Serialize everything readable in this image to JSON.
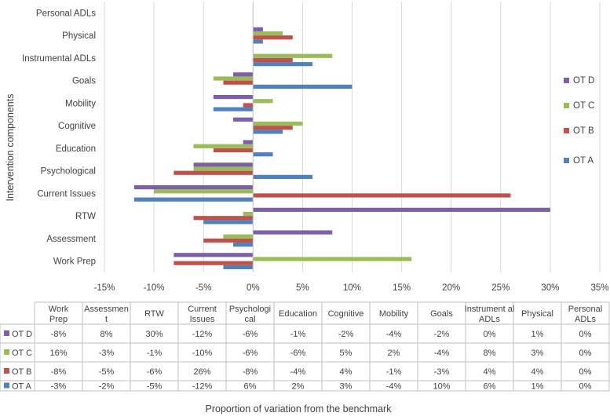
{
  "chart_data": {
    "type": "bar",
    "orientation": "horizontal",
    "ylabel": "Intervention components",
    "xlabel": "Proportion of variation from the benchmark",
    "categories": [
      "Work Prep",
      "Assessment",
      "RTW",
      "Current Issues",
      "Psychological",
      "Education",
      "Cognitive",
      "Mobility",
      "Goals",
      "Instrumental ADLs",
      "Physical",
      "Personal ADLs"
    ],
    "table_headers": [
      "Work Prep",
      "Assessmen t",
      "RTW",
      "Current Issues",
      "Psychologi cal",
      "Education",
      "Cognitive",
      "Mobility",
      "Goals",
      "Instrument al ADLs",
      "Physical",
      "Personal ADLs"
    ],
    "xlim": [
      -15,
      35
    ],
    "xticks": [
      -15,
      -10,
      -5,
      0,
      5,
      10,
      15,
      20,
      25,
      30,
      35
    ],
    "xtick_labels": [
      "-15%",
      "-10%",
      "-5%",
      "0%",
      "5%",
      "10%",
      "15%",
      "20%",
      "25%",
      "30%",
      "35%"
    ],
    "legend_position": "right",
    "grid": true,
    "series": [
      {
        "name": "OT D",
        "color": "#7e5fa5",
        "values": [
          -8,
          8,
          30,
          -12,
          -6,
          -1,
          -2,
          -4,
          -2,
          0,
          1,
          0
        ],
        "labels": [
          "-8%",
          "8%",
          "30%",
          "-12%",
          "-6%",
          "-1%",
          "-2%",
          "-4%",
          "-2%",
          "0%",
          "1%",
          "0%"
        ]
      },
      {
        "name": "OT C",
        "color": "#9bbb59",
        "values": [
          16,
          -3,
          -1,
          -10,
          -6,
          -6,
          5,
          2,
          -4,
          8,
          3,
          0
        ],
        "labels": [
          "16%",
          "-3%",
          "-1%",
          "-10%",
          "-6%",
          "-6%",
          "5%",
          "2%",
          "-4%",
          "8%",
          "3%",
          "0%"
        ]
      },
      {
        "name": "OT B",
        "color": "#c0504d",
        "values": [
          -8,
          -5,
          -6,
          26,
          -8,
          -4,
          4,
          -1,
          -3,
          4,
          4,
          0
        ],
        "labels": [
          "-8%",
          "-5%",
          "-6%",
          "26%",
          "-8%",
          "-4%",
          "4%",
          "-1%",
          "-3%",
          "4%",
          "4%",
          "0%"
        ]
      },
      {
        "name": "OT A",
        "color": "#4f81bd",
        "values": [
          -3,
          -2,
          -5,
          -12,
          6,
          2,
          3,
          -4,
          10,
          6,
          1,
          0
        ],
        "labels": [
          "-3%",
          "-2%",
          "-5%",
          "-12%",
          "6%",
          "2%",
          "3%",
          "-4%",
          "10%",
          "6%",
          "1%",
          "0%"
        ]
      }
    ]
  }
}
